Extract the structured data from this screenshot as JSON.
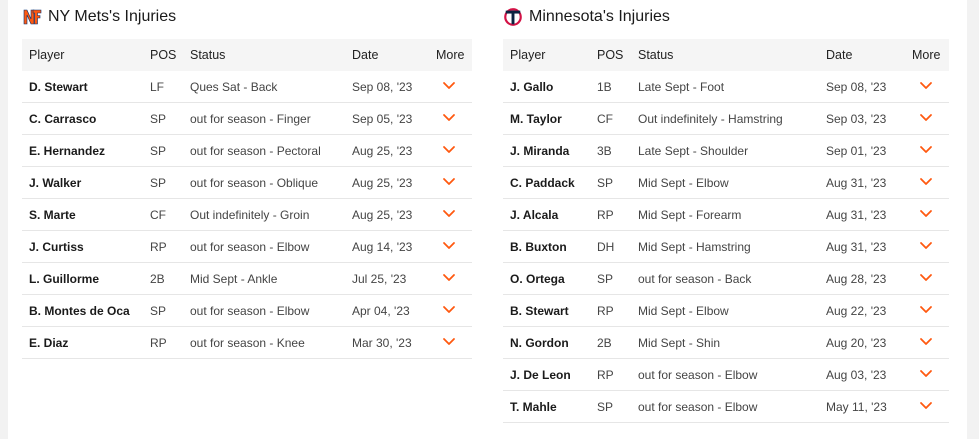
{
  "mets": {
    "title": "NY Mets's Injuries",
    "logo": "mets-ny-logo-icon",
    "accent": "#ff5910",
    "columns": [
      "Player",
      "POS",
      "Status",
      "Date",
      "More"
    ],
    "rows": [
      {
        "player": "D. Stewart",
        "pos": "LF",
        "status": "Ques Sat - Back",
        "date": "Sep 08, '23"
      },
      {
        "player": "C. Carrasco",
        "pos": "SP",
        "status": "out for season - Finger",
        "date": "Sep 05, '23"
      },
      {
        "player": "E. Hernandez",
        "pos": "SP",
        "status": "out for season - Pectoral",
        "date": "Aug 25, '23"
      },
      {
        "player": "J. Walker",
        "pos": "SP",
        "status": "out for season - Oblique",
        "date": "Aug 25, '23"
      },
      {
        "player": "S. Marte",
        "pos": "CF",
        "status": "Out indefinitely - Groin",
        "date": "Aug 25, '23"
      },
      {
        "player": "J. Curtiss",
        "pos": "RP",
        "status": "out for season - Elbow",
        "date": "Aug 14, '23"
      },
      {
        "player": "L. Guillorme",
        "pos": "2B",
        "status": "Mid Sept - Ankle",
        "date": "Jul 25, '23"
      },
      {
        "player": "B. Montes de Oca",
        "pos": "SP",
        "status": "out for season - Elbow",
        "date": "Apr 04, '23"
      },
      {
        "player": "E. Diaz",
        "pos": "RP",
        "status": "out for season - Knee",
        "date": "Mar 30, '23"
      }
    ]
  },
  "twins": {
    "title": "Minnesota's Injuries",
    "logo": "twins-tc-logo-icon",
    "accent": "#ff5910",
    "columns": [
      "Player",
      "POS",
      "Status",
      "Date",
      "More"
    ],
    "rows": [
      {
        "player": "J. Gallo",
        "pos": "1B",
        "status": "Late Sept - Foot",
        "date": "Sep 08, '23"
      },
      {
        "player": "M. Taylor",
        "pos": "CF",
        "status": "Out indefinitely - Hamstring",
        "date": "Sep 03, '23"
      },
      {
        "player": "J. Miranda",
        "pos": "3B",
        "status": "Late Sept - Shoulder",
        "date": "Sep 01, '23"
      },
      {
        "player": "C. Paddack",
        "pos": "SP",
        "status": "Mid Sept - Elbow",
        "date": "Aug 31, '23"
      },
      {
        "player": "J. Alcala",
        "pos": "RP",
        "status": "Mid Sept - Forearm",
        "date": "Aug 31, '23"
      },
      {
        "player": "B. Buxton",
        "pos": "DH",
        "status": "Mid Sept - Hamstring",
        "date": "Aug 31, '23"
      },
      {
        "player": "O. Ortega",
        "pos": "SP",
        "status": "out for season - Back",
        "date": "Aug 28, '23"
      },
      {
        "player": "B. Stewart",
        "pos": "RP",
        "status": "Mid Sept - Elbow",
        "date": "Aug 22, '23"
      },
      {
        "player": "N. Gordon",
        "pos": "2B",
        "status": "Mid Sept - Shin",
        "date": "Aug 20, '23"
      },
      {
        "player": "J. De Leon",
        "pos": "RP",
        "status": "out for season - Elbow",
        "date": "Aug 03, '23"
      },
      {
        "player": "T. Mahle",
        "pos": "SP",
        "status": "out for season - Elbow",
        "date": "May 11, '23"
      }
    ]
  }
}
